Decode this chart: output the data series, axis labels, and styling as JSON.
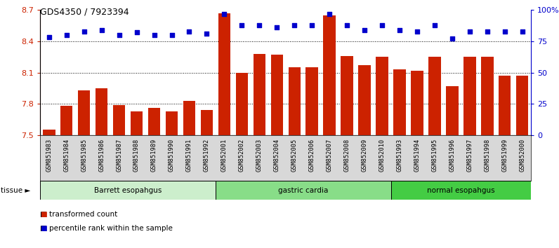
{
  "title": "GDS4350 / 7923394",
  "samples": [
    "GSM851983",
    "GSM851984",
    "GSM851985",
    "GSM851986",
    "GSM851987",
    "GSM851988",
    "GSM851989",
    "GSM851990",
    "GSM851991",
    "GSM851992",
    "GSM852001",
    "GSM852002",
    "GSM852003",
    "GSM852004",
    "GSM852005",
    "GSM852006",
    "GSM852007",
    "GSM852008",
    "GSM852009",
    "GSM852010",
    "GSM851993",
    "GSM851994",
    "GSM851995",
    "GSM851996",
    "GSM851997",
    "GSM851998",
    "GSM851999",
    "GSM852000"
  ],
  "bar_values": [
    7.55,
    7.78,
    7.93,
    7.95,
    7.79,
    7.73,
    7.76,
    7.73,
    7.83,
    7.74,
    8.67,
    8.1,
    8.28,
    8.27,
    8.15,
    8.15,
    8.65,
    8.26,
    8.17,
    8.25,
    8.13,
    8.12,
    8.25,
    7.97,
    8.25,
    8.25,
    8.07,
    8.07
  ],
  "dot_values": [
    78,
    80,
    83,
    84,
    80,
    82,
    80,
    80,
    83,
    81,
    97,
    88,
    88,
    86,
    88,
    88,
    97,
    88,
    84,
    88,
    84,
    83,
    88,
    77,
    83,
    83,
    83,
    83
  ],
  "groups": [
    {
      "label": "Barrett esopahgus",
      "start": 0,
      "end": 10,
      "color": "#cceecc"
    },
    {
      "label": "gastric cardia",
      "start": 10,
      "end": 20,
      "color": "#88dd88"
    },
    {
      "label": "normal esopahgus",
      "start": 20,
      "end": 28,
      "color": "#44cc44"
    }
  ],
  "bar_color": "#cc2200",
  "dot_color": "#0000cc",
  "ylim_left": [
    7.5,
    8.7
  ],
  "ylim_right": [
    0,
    100
  ],
  "yticks_left": [
    7.5,
    7.8,
    8.1,
    8.4,
    8.7
  ],
  "yticks_right": [
    0,
    25,
    50,
    75,
    100
  ],
  "grid_lines": [
    7.8,
    8.1,
    8.4
  ],
  "bg_color": "#ffffff",
  "xlabel_bg": "#d8d8d8",
  "legend": [
    {
      "label": "transformed count",
      "color": "#cc2200"
    },
    {
      "label": "percentile rank within the sample",
      "color": "#0000cc"
    }
  ]
}
